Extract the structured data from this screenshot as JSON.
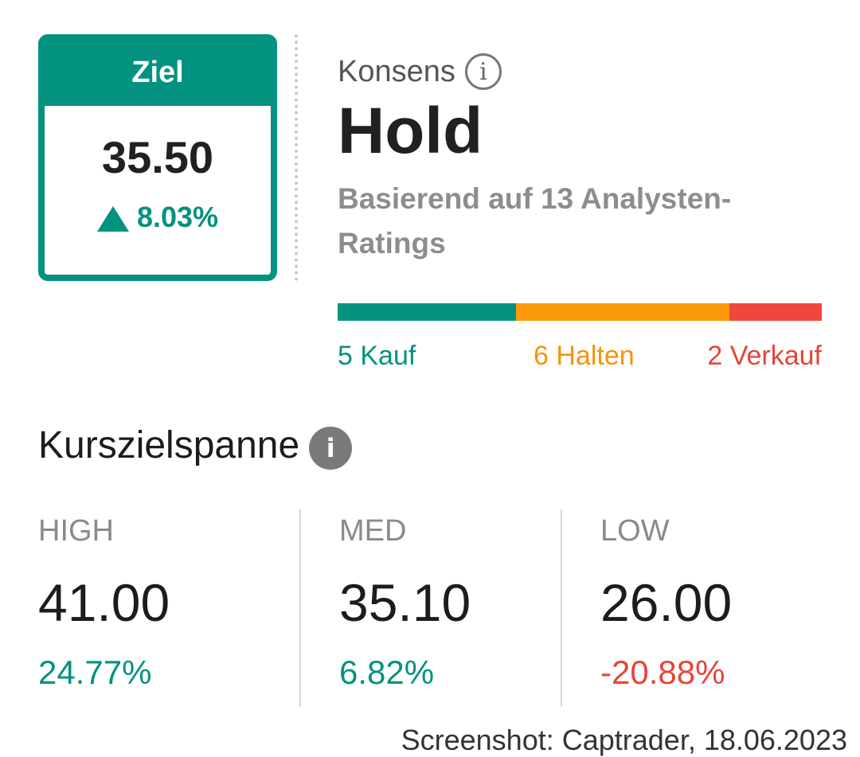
{
  "target": {
    "header": "Ziel",
    "price": "35.50",
    "change": "8.03%"
  },
  "consensus": {
    "label": "Konsens",
    "info_icon": "i",
    "value": "Hold",
    "subtitle": "Basierend auf 13 Analysten-Ratings"
  },
  "ratings": {
    "buy_label": "5 Kauf",
    "hold_label": "6 Halten",
    "sell_label": "2 Verkauf",
    "buy_count": 5,
    "hold_count": 6,
    "sell_count": 2,
    "colors": {
      "buy": "#03927f",
      "hold": "#fb9a0a",
      "sell": "#f0463c"
    }
  },
  "range": {
    "title": "Kurszielspanne",
    "info_icon": "i",
    "stats": [
      {
        "label": "HIGH",
        "value": "41.00",
        "pct": "24.77%"
      },
      {
        "label": "MED",
        "value": "35.10",
        "pct": "6.82%"
      },
      {
        "label": "LOW",
        "value": "26.00",
        "pct": "-20.88%"
      }
    ]
  },
  "watermark": "Screenshot: Captrader, 18.06.2023"
}
